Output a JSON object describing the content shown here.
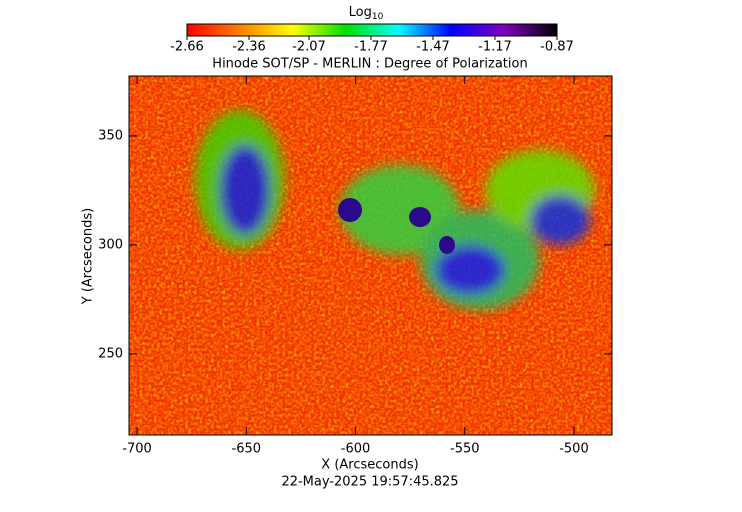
{
  "chart_data": {
    "type": "image",
    "title": "Hinode SOT/SP - MERLIN : Degree of Polarization",
    "xlabel": "X (Arcseconds)",
    "ylabel": "Y (Arcseconds)",
    "footer": "22-May-2025 19:57:45.825",
    "xlim": [
      -703.7,
      -482.6
    ],
    "xticks": [
      -700,
      -650,
      -600,
      -550,
      -500
    ],
    "ylim": [
      212.8,
      377.5
    ],
    "yticks": [
      250,
      300,
      350
    ],
    "colorbar": {
      "label": "Log",
      "label_subscript": "10",
      "clim": [
        -2.66,
        -0.87
      ],
      "ticks": [
        -2.66,
        -2.36,
        -2.07,
        -1.77,
        -1.47,
        -1.17,
        -0.87
      ],
      "colormap": [
        "#ff0000",
        "#ff8000",
        "#ffff00",
        "#00e000",
        "#00ffff",
        "#0000ff",
        "#8000c0",
        "#000000"
      ]
    }
  }
}
